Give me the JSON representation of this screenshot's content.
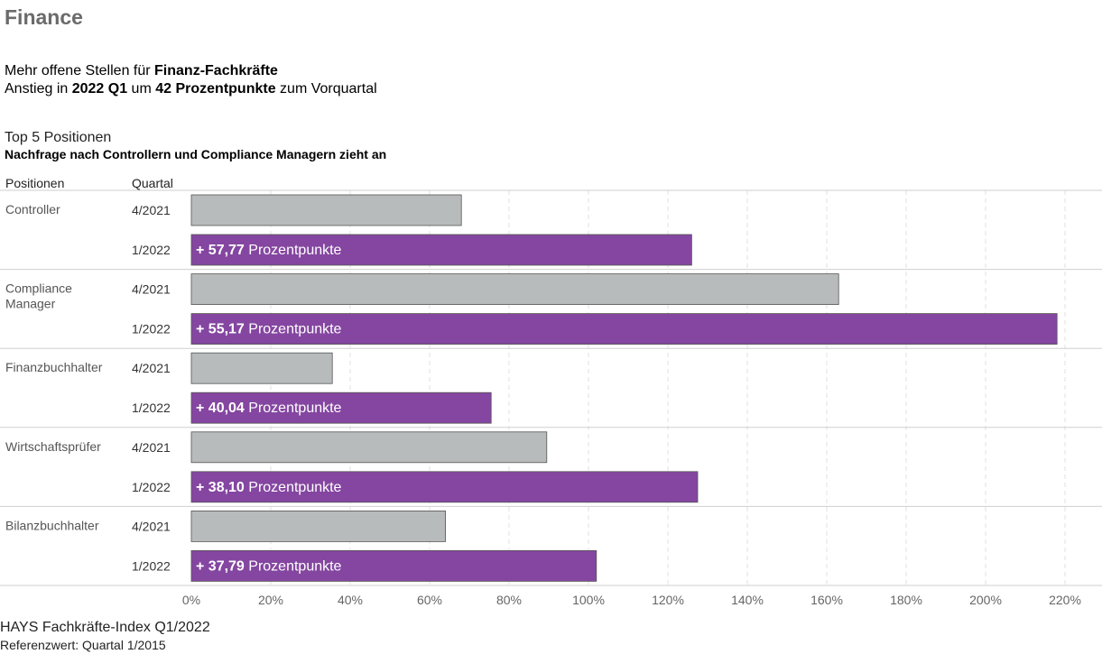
{
  "title": "Finance",
  "headline": {
    "line1_pre": "Mehr offene Stellen für ",
    "line1_bold": "Finanz-Fachkräfte",
    "line2_pre": "Anstieg in ",
    "line2_bold1": "2022 Q1",
    "line2_mid": " um ",
    "line2_bold2": "42 Prozentpunkte",
    "line2_post": " zum Vorquartal"
  },
  "section_title": "Top 5 Positionen",
  "section_subtitle": "Nachfrage nach Controllern und Compliance Managern zieht an",
  "column_headers": {
    "positions": "Positionen",
    "quarter": "Quartal"
  },
  "footer": {
    "source": "HAYS Fachkräfte-Index Q1/2022",
    "note": "Referenzwert: Quartal 1/2015"
  },
  "colors": {
    "prev": "#b8bbbb",
    "curr": "#8446a0",
    "grid": "#e2e2e2",
    "separator": "#cfcfcf"
  },
  "chart_data": {
    "type": "bar",
    "orientation": "horizontal",
    "xlim": [
      0,
      2.2
    ],
    "x_ticks": [
      0,
      0.2,
      0.4,
      0.6,
      0.8,
      1.0,
      1.2,
      1.4,
      1.6,
      1.8,
      2.0,
      2.2
    ],
    "x_tick_labels": [
      "0%",
      "20%",
      "40%",
      "60%",
      "80%",
      "100%",
      "120%",
      "140%",
      "160%",
      "180%",
      "200%",
      "220%"
    ],
    "label_unit": "Prozentpunkte",
    "series": [
      {
        "name": "4/2021"
      },
      {
        "name": "1/2022"
      }
    ],
    "groups": [
      {
        "position": "Controller",
        "values": [
          0.68,
          1.26
        ],
        "change_label": "+ 57,77"
      },
      {
        "position": "Compliance Manager",
        "position_lines": [
          "Compliance",
          "Manager"
        ],
        "values": [
          1.63,
          2.18
        ],
        "change_label": "+ 55,17"
      },
      {
        "position": "Finanzbuchhalter",
        "values": [
          0.355,
          0.755
        ],
        "change_label": "+ 40,04"
      },
      {
        "position": "Wirtschaftsprüfer",
        "values": [
          0.895,
          1.275
        ],
        "change_label": "+ 38,10"
      },
      {
        "position": "Bilanzbuchhalter",
        "values": [
          0.64,
          1.02
        ],
        "change_label": "+ 37,79"
      }
    ]
  }
}
